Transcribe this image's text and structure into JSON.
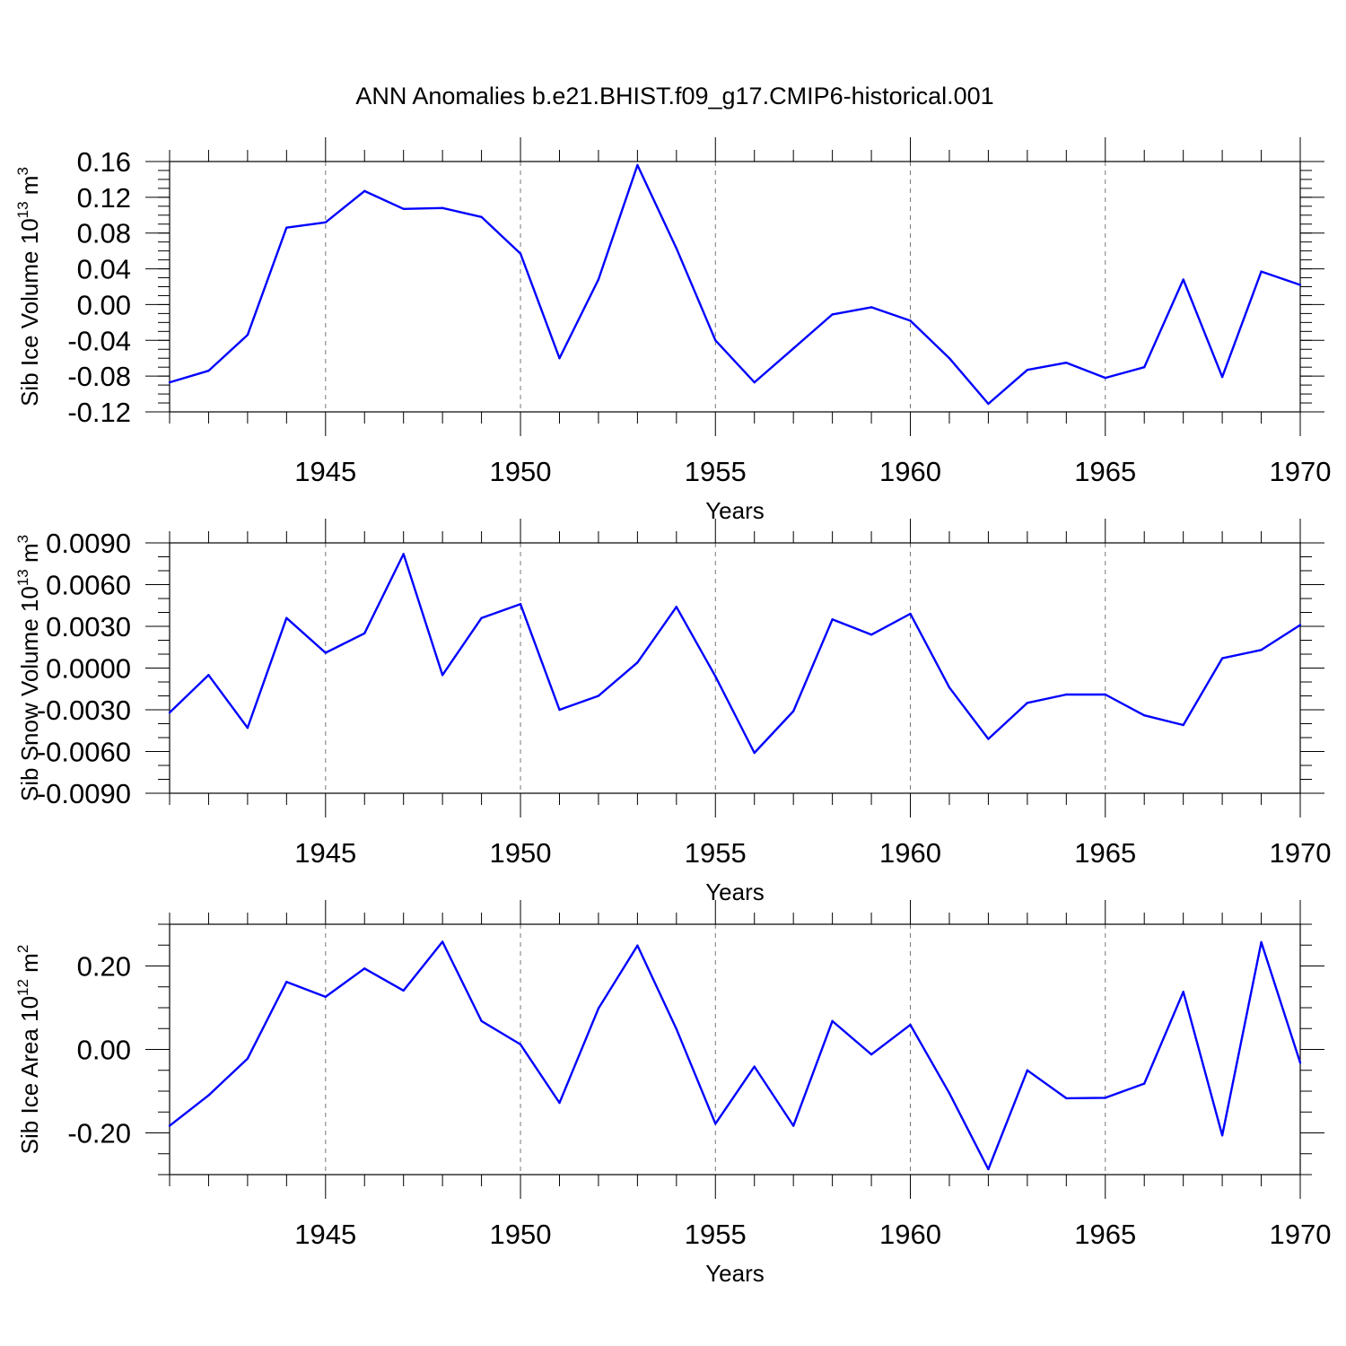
{
  "title": "ANN Anomalies b.e21.BHIST.f09_g17.CMIP6-historical.001",
  "colors": {
    "series": "#0000ff",
    "axis": "#000000",
    "grid": "#777777"
  },
  "chart_data": [
    {
      "type": "line",
      "title": "ANN Anomalies b.e21.BHIST.f09_g17.CMIP6-historical.001",
      "xlabel": "Years",
      "ylabel": "Sib Ice Volume 10",
      "ylabel_exp": "13",
      "ylabel_unit": " m",
      "ylabel_unit_exp": "3",
      "xlim": [
        1941,
        1970
      ],
      "ylim": [
        -0.12,
        0.16
      ],
      "yticks": [
        -0.12,
        -0.08,
        -0.04,
        0.0,
        0.04,
        0.08,
        0.12,
        0.16
      ],
      "ytick_labels": [
        "-0.12",
        "-0.08",
        "-0.04",
        "0.00",
        "0.04",
        "0.08",
        "0.12",
        "0.16"
      ],
      "yminor_step": 0.01,
      "xticks": [
        1945,
        1950,
        1955,
        1960,
        1965,
        1970
      ],
      "xtick_labels": [
        "1945",
        "1950",
        "1955",
        "1960",
        "1965",
        "1970"
      ],
      "grid": "vertical-dashed",
      "series": [
        {
          "name": "Sib Ice Volume",
          "x": [
            1941,
            1942,
            1943,
            1944,
            1945,
            1946,
            1947,
            1948,
            1949,
            1950,
            1951,
            1952,
            1953,
            1954,
            1955,
            1956,
            1957,
            1958,
            1959,
            1960,
            1961,
            1962,
            1963,
            1964,
            1965,
            1966,
            1967,
            1968,
            1969,
            1970
          ],
          "values": [
            -0.087,
            -0.074,
            -0.034,
            0.086,
            0.092,
            0.127,
            0.107,
            0.108,
            0.098,
            0.057,
            -0.06,
            0.028,
            0.156,
            0.063,
            -0.04,
            -0.087,
            -0.049,
            -0.011,
            -0.003,
            -0.018,
            -0.06,
            -0.111,
            -0.073,
            -0.065,
            -0.082,
            -0.07,
            0.028,
            -0.081,
            0.037,
            0.022
          ]
        }
      ]
    },
    {
      "type": "line",
      "xlabel": "Years",
      "ylabel": "Sib Snow Volume 10",
      "ylabel_exp": "13",
      "ylabel_unit": " m",
      "ylabel_unit_exp": "3",
      "xlim": [
        1941,
        1970
      ],
      "ylim": [
        -0.009,
        0.009
      ],
      "yticks": [
        -0.009,
        -0.006,
        -0.003,
        0.0,
        0.003,
        0.006,
        0.009
      ],
      "ytick_labels": [
        "-0.0090",
        "-0.0060",
        "-0.0030",
        "0.0000",
        "0.0030",
        "0.0060",
        "0.0090"
      ],
      "yminor_step": 0.001,
      "xticks": [
        1945,
        1950,
        1955,
        1960,
        1965,
        1970
      ],
      "xtick_labels": [
        "1945",
        "1950",
        "1955",
        "1960",
        "1965",
        "1970"
      ],
      "grid": "vertical-dashed",
      "series": [
        {
          "name": "Sib Snow Volume",
          "x": [
            1941,
            1942,
            1943,
            1944,
            1945,
            1946,
            1947,
            1948,
            1949,
            1950,
            1951,
            1952,
            1953,
            1954,
            1955,
            1956,
            1957,
            1958,
            1959,
            1960,
            1961,
            1962,
            1963,
            1964,
            1965,
            1966,
            1967,
            1968,
            1969,
            1970
          ],
          "values": [
            -0.0032,
            -0.0005,
            -0.0043,
            0.0036,
            0.0011,
            0.0025,
            0.0082,
            -0.0005,
            0.0036,
            0.0046,
            -0.003,
            -0.002,
            0.0004,
            0.0044,
            -0.0006,
            -0.0061,
            -0.0031,
            0.0035,
            0.0024,
            0.0039,
            -0.0014,
            -0.0051,
            -0.0025,
            -0.0019,
            -0.0019,
            -0.0034,
            -0.0041,
            0.0007,
            0.0013,
            0.0031
          ]
        }
      ]
    },
    {
      "type": "line",
      "xlabel": "Years",
      "ylabel": "Sib Ice Area 10",
      "ylabel_exp": "12",
      "ylabel_unit": " m",
      "ylabel_unit_exp": "2",
      "xlim": [
        1941,
        1970
      ],
      "ylim": [
        -0.3,
        0.3
      ],
      "yticks": [
        -0.2,
        0.0,
        0.2
      ],
      "ytick_labels": [
        "-0.20",
        "0.00",
        "0.20"
      ],
      "yminor_step": 0.05,
      "xticks": [
        1945,
        1950,
        1955,
        1960,
        1965,
        1970
      ],
      "xtick_labels": [
        "1945",
        "1950",
        "1955",
        "1960",
        "1965",
        "1970"
      ],
      "grid": "vertical-dashed",
      "series": [
        {
          "name": "Sib Ice Area",
          "x": [
            1941,
            1942,
            1943,
            1944,
            1945,
            1946,
            1947,
            1948,
            1949,
            1950,
            1951,
            1952,
            1953,
            1954,
            1955,
            1956,
            1957,
            1958,
            1959,
            1960,
            1961,
            1962,
            1963,
            1964,
            1965,
            1966,
            1967,
            1968,
            1969,
            1970
          ],
          "values": [
            -0.183,
            -0.11,
            -0.022,
            0.162,
            0.126,
            0.194,
            0.141,
            0.258,
            0.068,
            0.012,
            -0.128,
            0.098,
            0.249,
            0.049,
            -0.178,
            -0.041,
            -0.183,
            0.068,
            -0.012,
            0.059,
            -0.105,
            -0.287,
            -0.05,
            -0.117,
            -0.116,
            -0.082,
            0.138,
            -0.206,
            0.257,
            -0.032
          ]
        }
      ]
    }
  ]
}
